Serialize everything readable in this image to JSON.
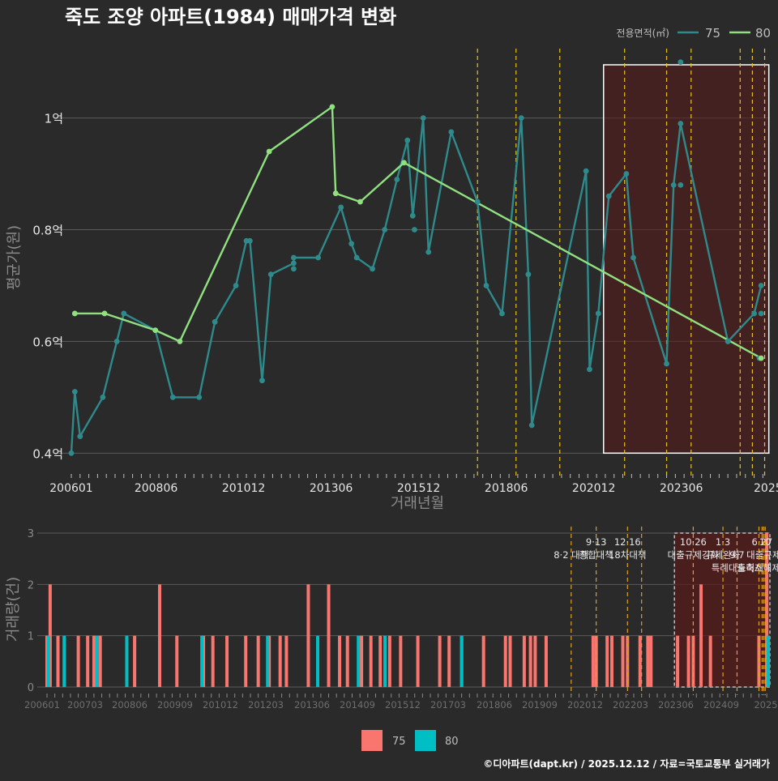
{
  "title": "죽도 조양 아파트(1984) 매매가격 변화",
  "footer": "©디아파트(dapt.kr) / 2025.12.12 / 자료=국토교통부 실거래가",
  "colors": {
    "bg": "#2a2a2b",
    "s75": "#2f8a8c",
    "s80": "#90e080",
    "bar75": "#f8766d",
    "bar80": "#00bfc4",
    "policy": "#e8c020",
    "policyBar": "#e0a020",
    "shade": "#5a1a1a"
  },
  "chart_data": [
    {
      "type": "line",
      "title": "죽도 조양 아파트(1984) 매매가격 변화",
      "xlabel": "거래년월",
      "ylabel": "평균가(원)",
      "legend_title": "전용면적(㎡)",
      "legend": [
        "75",
        "80"
      ],
      "x_ticks": [
        "200601",
        "200806",
        "201012",
        "201306",
        "201512",
        "201806",
        "202012",
        "202306",
        "2025"
      ],
      "y_ticks": [
        "0.4억",
        "0.6억",
        "0.8억",
        "1억"
      ],
      "ylim": [
        0.37,
        1.13
      ],
      "xlim": [
        2006.0,
        2025.95
      ],
      "shade": [
        2021.2,
        2025.92
      ],
      "policy_lines": [
        2017.6,
        2018.7,
        2019.95,
        2021.8,
        2023.0,
        2023.7,
        2025.1,
        2025.45,
        2025.8
      ],
      "series": [
        {
          "name": "75",
          "points": [
            [
              2006.0,
              0.4
            ],
            [
              2006.1,
              0.51
            ],
            [
              2006.25,
              0.43
            ],
            [
              2006.9,
              0.5
            ],
            [
              2007.3,
              0.6
            ],
            [
              2007.5,
              0.65
            ],
            [
              2008.4,
              0.62
            ],
            [
              2008.9,
              0.5
            ],
            [
              2009.65,
              0.5
            ],
            [
              2010.1,
              0.635
            ],
            [
              2010.7,
              0.7
            ],
            [
              2011.0,
              0.78
            ],
            [
              2011.1,
              0.78
            ],
            [
              2011.45,
              0.53
            ],
            [
              2011.7,
              0.72
            ],
            [
              2012.35,
              0.74
            ],
            [
              2012.35,
              0.75
            ],
            [
              2013.05,
              0.75
            ],
            [
              2013.7,
              0.84
            ],
            [
              2014.0,
              0.775
            ],
            [
              2014.15,
              0.75
            ],
            [
              2014.6,
              0.73
            ],
            [
              2014.95,
              0.8
            ],
            [
              2015.3,
              0.89
            ],
            [
              2015.6,
              0.96
            ],
            [
              2015.75,
              0.825
            ],
            [
              2016.05,
              1.0
            ],
            [
              2016.2,
              0.76
            ],
            [
              2016.85,
              0.975
            ],
            [
              2017.6,
              0.85
            ],
            [
              2017.85,
              0.7
            ],
            [
              2018.3,
              0.65
            ],
            [
              2018.85,
              1.0
            ],
            [
              2019.05,
              0.72
            ],
            [
              2019.15,
              0.45
            ],
            [
              2020.7,
              0.905
            ],
            [
              2020.8,
              0.55
            ],
            [
              2021.05,
              0.65
            ],
            [
              2021.35,
              0.86
            ],
            [
              2021.85,
              0.9
            ],
            [
              2022.05,
              0.75
            ],
            [
              2023.0,
              0.56
            ],
            [
              2023.2,
              0.88
            ],
            [
              2023.4,
              0.99
            ],
            [
              2024.75,
              0.6
            ],
            [
              2025.5,
              0.65
            ],
            [
              2025.7,
              0.7
            ]
          ]
        },
        {
          "name": "80",
          "points": [
            [
              2006.1,
              0.65
            ],
            [
              2006.95,
              0.65
            ],
            [
              2008.4,
              0.62
            ],
            [
              2009.1,
              0.6
            ],
            [
              2011.65,
              0.94
            ],
            [
              2013.45,
              1.02
            ],
            [
              2013.55,
              0.865
            ],
            [
              2014.25,
              0.85
            ],
            [
              2015.5,
              0.92
            ],
            [
              2025.7,
              0.57
            ]
          ]
        }
      ],
      "extra_points": [
        {
          "name": "75",
          "points": [
            [
              2015.8,
              0.8
            ],
            [
              2012.35,
              0.73
            ],
            [
              2023.4,
              1.1
            ],
            [
              2023.4,
              0.88
            ],
            [
              2025.7,
              0.65
            ],
            [
              2025.65,
              0.57
            ]
          ]
        }
      ]
    },
    {
      "type": "bar",
      "ylabel": "거래량(건)",
      "legend": [
        "75",
        "80"
      ],
      "x_ticks": [
        "200601",
        "200703",
        "200806",
        "200909",
        "201012",
        "201203",
        "201306",
        "201409",
        "201512",
        "201703",
        "201806",
        "201909",
        "202012",
        "202203",
        "202306",
        "202409",
        "2025"
      ],
      "y_ticks": [
        "0",
        "1",
        "2",
        "3"
      ],
      "ylim": [
        0,
        3
      ],
      "bars75": [
        [
          2006.0,
          1
        ],
        [
          2006.1,
          2
        ],
        [
          2006.35,
          1
        ],
        [
          2007.0,
          1
        ],
        [
          2007.3,
          1
        ],
        [
          2007.5,
          1
        ],
        [
          2007.7,
          1
        ],
        [
          2008.8,
          1
        ],
        [
          2009.6,
          2
        ],
        [
          2010.15,
          1
        ],
        [
          2011.0,
          1
        ],
        [
          2011.3,
          1
        ],
        [
          2011.75,
          1
        ],
        [
          2012.35,
          1
        ],
        [
          2012.75,
          1
        ],
        [
          2013.1,
          1
        ],
        [
          2013.45,
          1
        ],
        [
          2013.65,
          1
        ],
        [
          2014.35,
          2
        ],
        [
          2015.0,
          2
        ],
        [
          2015.35,
          1
        ],
        [
          2015.6,
          1
        ],
        [
          2016.05,
          1
        ],
        [
          2016.35,
          1
        ],
        [
          2016.65,
          1
        ],
        [
          2016.95,
          1
        ],
        [
          2017.3,
          1
        ],
        [
          2017.85,
          1
        ],
        [
          2018.55,
          1
        ],
        [
          2018.85,
          1
        ],
        [
          2019.25,
          1
        ],
        [
          2019.95,
          1
        ],
        [
          2020.65,
          1
        ],
        [
          2020.8,
          1
        ],
        [
          2021.25,
          1
        ],
        [
          2021.45,
          1
        ],
        [
          2021.6,
          1
        ],
        [
          2021.95,
          1
        ],
        [
          2023.45,
          1
        ],
        [
          2023.55,
          1
        ],
        [
          2023.9,
          1
        ],
        [
          2024.05,
          1
        ],
        [
          2024.4,
          1
        ],
        [
          2024.55,
          1
        ],
        [
          2024.95,
          1
        ],
        [
          2025.2,
          1
        ],
        [
          2025.3,
          1
        ],
        [
          2026.15,
          1
        ],
        [
          2026.5,
          1
        ],
        [
          2026.65,
          1
        ],
        [
          2026.9,
          2
        ],
        [
          2027.2,
          1
        ],
        [
          2028.75,
          1
        ],
        [
          2029.0,
          3
        ]
      ],
      "bars80": [
        [
          2006.05,
          1
        ],
        [
          2006.55,
          1
        ],
        [
          2007.6,
          1
        ],
        [
          2008.55,
          1
        ],
        [
          2010.95,
          1
        ],
        [
          2013.05,
          1
        ],
        [
          2014.65,
          1
        ],
        [
          2015.95,
          1
        ],
        [
          2016.8,
          1
        ],
        [
          2019.25,
          1
        ],
        [
          2029.05,
          1
        ]
      ],
      "shade": [
        2026.05,
        2029.1
      ],
      "policies": [
        {
          "x": 2022.75,
          "label": "8·2 대책",
          "row": 1
        },
        {
          "x": 2023.55,
          "label": "9·13",
          "row": 0
        },
        {
          "x": 2023.55,
          "label": "종합대책",
          "row": 1
        },
        {
          "x": 2024.55,
          "label": "12·16",
          "row": 0
        },
        {
          "x": 2024.55,
          "label": "18차대책",
          "row": 1
        },
        {
          "x": 2025.0,
          "label": "",
          "row": 0
        },
        {
          "x": 2026.65,
          "label": "10·26",
          "row": 0
        },
        {
          "x": 2026.65,
          "label": "대출규제강화",
          "row": 1
        },
        {
          "x": 2027.6,
          "label": "1·3",
          "row": 0
        },
        {
          "x": 2027.6,
          "label": "규제완화",
          "row": 1
        },
        {
          "x": 2028.05,
          "label": "9·7",
          "row": 1
        },
        {
          "x": 2028.05,
          "label": "특례대출축소",
          "row": 2
        },
        {
          "x": 2028.85,
          "label": "6·27",
          "row": 0
        },
        {
          "x": 2028.95,
          "label": "10",
          "row": 0
        },
        {
          "x": 2028.9,
          "label": "대출규제",
          "row": 1
        },
        {
          "x": 2028.75,
          "label": "토허제해제",
          "row": 2
        }
      ]
    }
  ]
}
